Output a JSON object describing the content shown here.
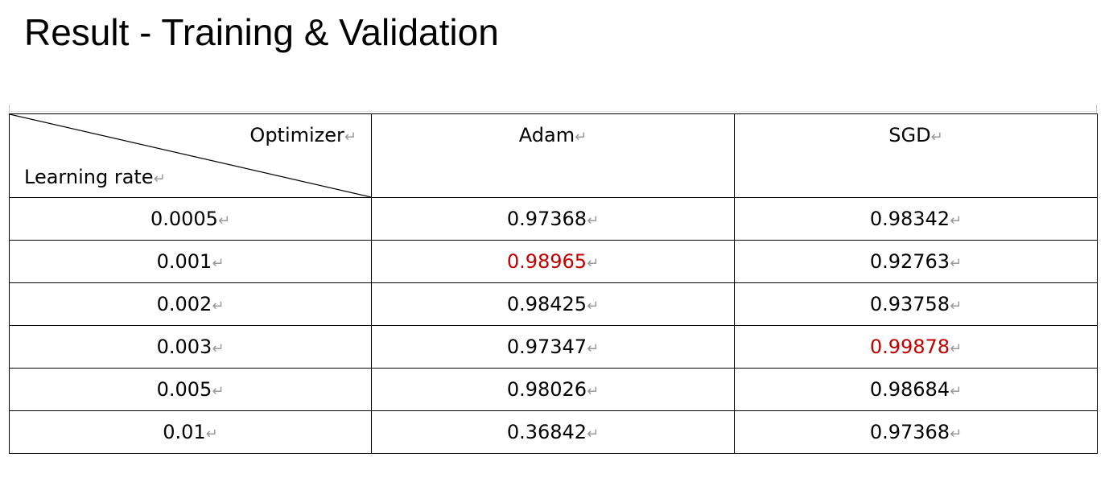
{
  "title": "Result - Training & Validation",
  "table": {
    "corner": {
      "column_header": "Optimizer",
      "row_header": "Learning rate"
    },
    "columns": [
      "Adam",
      "SGD"
    ],
    "paragraph_mark": "↵",
    "rows": [
      {
        "lr": "0.0005",
        "adam": "0.97368",
        "sgd": "0.98342"
      },
      {
        "lr": "0.001",
        "adam": "0.98965",
        "sgd": "0.92763"
      },
      {
        "lr": "0.002",
        "adam": "0.98425",
        "sgd": "0.93758"
      },
      {
        "lr": "0.003",
        "adam": "0.97347",
        "sgd": "0.99878"
      },
      {
        "lr": "0.005",
        "adam": "0.98026",
        "sgd": "0.98684"
      },
      {
        "lr": "0.01",
        "adam": "0.36842",
        "sgd": "0.97368"
      }
    ],
    "highlight_color": "#c00000",
    "highlighted_cells": [
      "rows.1.adam",
      "rows.3.sgd"
    ]
  }
}
